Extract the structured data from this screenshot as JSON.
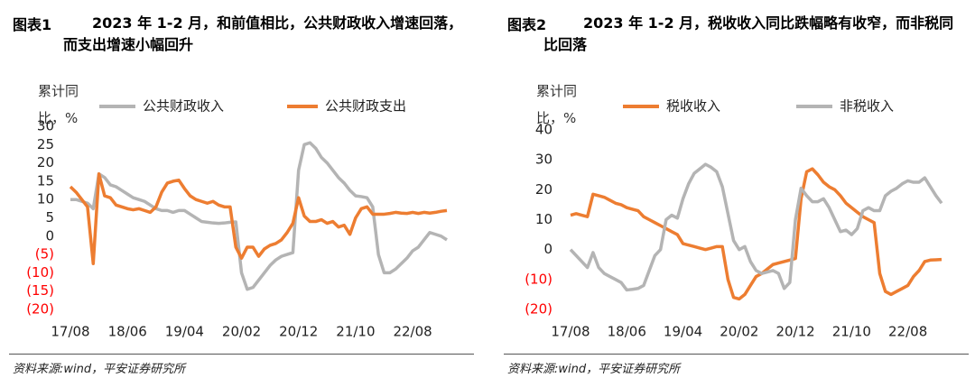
{
  "chart_data": [
    {
      "type": "line",
      "figure_label": "图表1",
      "title": "2023 年 1-2 月，和前值相比，公共财政收入增速回落，而支出增速小幅回升",
      "ylabel": "累计同比，%",
      "source": "资料来源:wind，平安证券研究所",
      "legend": "top",
      "grid": false,
      "negative_tick_color": "#ff0000",
      "categories": [
        "17/08",
        null,
        null,
        null,
        null,
        null,
        null,
        null,
        null,
        null,
        "18/06",
        null,
        null,
        null,
        null,
        null,
        null,
        null,
        null,
        null,
        "19/04",
        null,
        null,
        null,
        null,
        null,
        null,
        null,
        null,
        null,
        "20/02",
        null,
        null,
        null,
        null,
        null,
        null,
        null,
        null,
        null,
        "20/12",
        null,
        null,
        null,
        null,
        null,
        null,
        null,
        null,
        null,
        "21/10",
        null,
        null,
        null,
        null,
        null,
        null,
        null,
        null,
        null,
        "22/08",
        null,
        null,
        null,
        null,
        null,
        null
      ],
      "ylim": [
        -20,
        30
      ],
      "yticks": [
        30,
        25,
        20,
        15,
        10,
        5,
        0,
        {
          "value": -5,
          "label": "(5)"
        },
        {
          "value": -10,
          "label": "(10)"
        },
        {
          "value": -15,
          "label": "(15)"
        },
        {
          "value": -20,
          "label": "(20)"
        }
      ],
      "series": [
        {
          "name": "公共财政收入",
          "color": "#b4b4b4",
          "values": [
            10,
            10,
            9.5,
            9,
            7.5,
            17,
            16,
            14,
            13.5,
            12.5,
            11.5,
            10.5,
            10,
            9.5,
            8.5,
            7.5,
            7,
            7,
            6.5,
            7,
            7,
            6,
            5,
            4,
            3.8,
            3.6,
            3.5,
            3.6,
            3.8,
            3.9,
            -10,
            -14.5,
            -14,
            -12,
            -10,
            -8,
            -6.5,
            -5.5,
            -5,
            -4.5,
            18,
            25,
            25.5,
            24,
            21.5,
            20,
            18,
            16,
            14.5,
            12.5,
            11,
            10.8,
            10.5,
            8,
            -5,
            -10,
            -10,
            -9,
            -7.5,
            -6,
            -4,
            -3,
            -1,
            1,
            0.5,
            0,
            -1
          ]
        },
        {
          "name": "公共财政支出",
          "color": "#ed7d31",
          "values": [
            13.5,
            12,
            10,
            8,
            -7.5,
            17,
            11,
            10.5,
            8.5,
            8,
            7.5,
            7.2,
            7.5,
            7,
            6.5,
            8,
            12,
            14.5,
            15,
            15.3,
            13,
            11,
            10,
            9.5,
            9,
            9.5,
            8.5,
            8,
            8,
            -3,
            -6,
            -3,
            -3,
            -5.5,
            -3.5,
            -2.5,
            -2,
            -1,
            1,
            3.5,
            10.5,
            5.5,
            4,
            4,
            4.5,
            3.5,
            4,
            2.5,
            3,
            0.5,
            5,
            7.5,
            8,
            6,
            6,
            6,
            6.2,
            6.5,
            6.3,
            6.2,
            6.5,
            6.2,
            6.5,
            6.3,
            6.5,
            6.8,
            7
          ]
        }
      ]
    },
    {
      "type": "line",
      "figure_label": "图表2",
      "title": "2023 年 1-2 月，税收收入同比跌幅略有收窄，而非税同比回落",
      "ylabel": "累计同比，%",
      "source": "资料来源:wind，平安证券研究所",
      "legend": "top",
      "grid": false,
      "negative_tick_color": "#ff0000",
      "categories": [
        "17/08",
        null,
        null,
        null,
        null,
        null,
        null,
        null,
        null,
        null,
        "18/06",
        null,
        null,
        null,
        null,
        null,
        null,
        null,
        null,
        null,
        "19/04",
        null,
        null,
        null,
        null,
        null,
        null,
        null,
        null,
        null,
        "20/02",
        null,
        null,
        null,
        null,
        null,
        null,
        null,
        null,
        null,
        "20/12",
        null,
        null,
        null,
        null,
        null,
        null,
        null,
        null,
        null,
        "21/10",
        null,
        null,
        null,
        null,
        null,
        null,
        null,
        null,
        null,
        "22/08",
        null,
        null,
        null,
        null,
        null,
        null
      ],
      "ylim": [
        -20,
        40
      ],
      "yticks": [
        40,
        30,
        20,
        10,
        0,
        {
          "value": -10,
          "label": "(10)"
        },
        {
          "value": -20,
          "label": "(20)"
        }
      ],
      "series": [
        {
          "name": "税收收入",
          "color": "#ed7d31",
          "values": [
            11.5,
            12,
            11.5,
            11,
            18.5,
            18,
            17.5,
            16.5,
            15.5,
            15,
            14,
            13.5,
            13,
            11,
            10,
            9,
            8,
            7,
            6,
            5,
            2,
            1.5,
            1,
            0.5,
            0,
            0.5,
            1,
            1,
            -10,
            -16,
            -16.5,
            -15,
            -12,
            -9,
            -8,
            -6.5,
            -5,
            -4.5,
            -4,
            -3.5,
            -3,
            17,
            26,
            27,
            25,
            22.5,
            21,
            20,
            18,
            15.5,
            14,
            12.5,
            11,
            10,
            9,
            -8,
            -14,
            -15,
            -14,
            -13,
            -12,
            -9,
            -7,
            -4,
            -3.5,
            -3.4,
            -3.3
          ]
        },
        {
          "name": "非税收入",
          "color": "#b4b4b4",
          "values": [
            0,
            -2,
            -4,
            -6,
            -1,
            -6,
            -8,
            -9,
            -10,
            -11,
            -13.5,
            -13.3,
            -13,
            -12,
            -7,
            -2,
            0,
            10,
            11.5,
            10.5,
            17,
            22,
            25.5,
            27,
            28.5,
            27.5,
            26,
            21,
            12,
            3,
            0,
            1,
            -4,
            -7,
            -8,
            -7.5,
            -7,
            -8,
            -13,
            -11,
            10,
            20.5,
            18,
            16,
            16,
            17,
            14,
            10,
            6,
            6.5,
            5,
            7,
            13,
            14,
            13,
            13,
            18,
            19.5,
            20.5,
            22,
            23,
            22.5,
            22.5,
            24,
            21,
            18,
            15.5
          ]
        }
      ]
    }
  ]
}
